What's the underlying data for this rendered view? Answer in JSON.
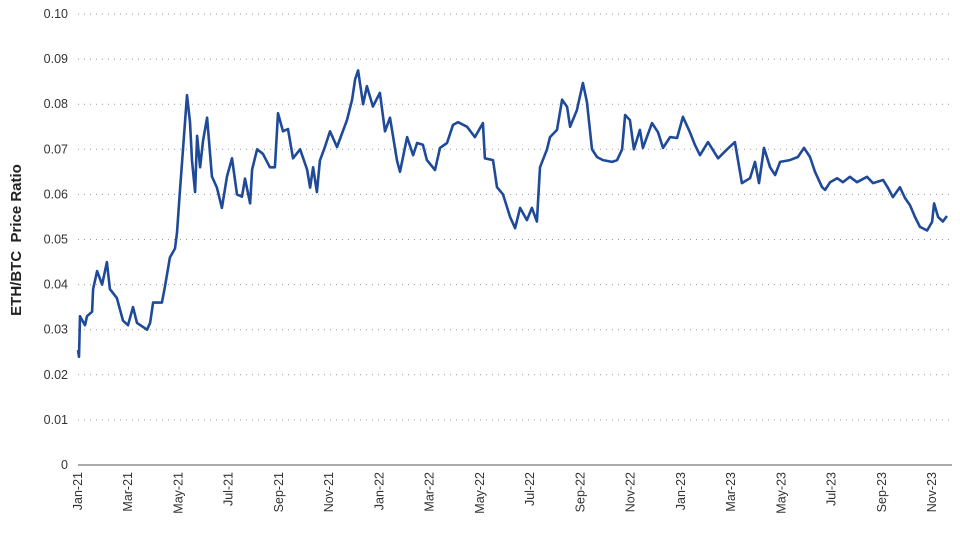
{
  "chart_data": {
    "type": "line",
    "title": "",
    "xlabel": "",
    "ylabel": "ETH/BTC  Price Ratio",
    "ylim": [
      0,
      0.1
    ],
    "y_ticks": [
      "0",
      "0.01",
      "0.02",
      "0.03",
      "0.04",
      "0.05",
      "0.06",
      "0.07",
      "0.08",
      "0.09",
      "0.10"
    ],
    "y_tick_values": [
      0,
      0.01,
      0.02,
      0.03,
      0.04,
      0.05,
      0.06,
      0.07,
      0.08,
      0.09,
      0.1
    ],
    "x_unit": "months since Jan-21",
    "x_ticks": [
      "Jan-21",
      "Mar-21",
      "May-21",
      "Jul-21",
      "Sep-21",
      "Nov-21",
      "Jan-22",
      "Mar-22",
      "May-22",
      "Jul-22",
      "Sep-22",
      "Nov-22",
      "Jan-23",
      "Mar-23",
      "May-23",
      "Jul-23",
      "Sep-23",
      "Nov-23"
    ],
    "x_tick_values": [
      0,
      2,
      4,
      6,
      8,
      10,
      12,
      14,
      16,
      18,
      20,
      22,
      24,
      26,
      28,
      30,
      32,
      34
    ],
    "grid": "horizontal dotted",
    "color": "#1f4a99",
    "series": [
      {
        "name": "ETH/BTC",
        "x": [
          0,
          0.04,
          0.08,
          0.28,
          0.36,
          0.56,
          0.6,
          0.76,
          0.96,
          1.15,
          1.27,
          1.55,
          1.79,
          1.99,
          2.19,
          2.35,
          2.75,
          2.87,
          2.99,
          3.34,
          3.46,
          3.66,
          3.86,
          3.94,
          4.06,
          4.18,
          4.34,
          4.46,
          4.54,
          4.66,
          4.74,
          4.86,
          4.98,
          5.14,
          5.33,
          5.53,
          5.73,
          5.93,
          6.13,
          6.33,
          6.53,
          6.65,
          6.85,
          6.93,
          7.13,
          7.36,
          7.64,
          7.84,
          7.96,
          8.16,
          8.36,
          8.56,
          8.84,
          9.12,
          9.24,
          9.36,
          9.51,
          9.63,
          9.83,
          10.03,
          10.31,
          10.51,
          10.71,
          10.91,
          11.03,
          11.15,
          11.35,
          11.5,
          11.74,
          12.02,
          12.22,
          12.42,
          12.7,
          12.82,
          13.1,
          13.34,
          13.5,
          13.73,
          13.89,
          14.21,
          14.41,
          14.69,
          14.93,
          15.13,
          15.49,
          15.8,
          16.12,
          16.2,
          16.52,
          16.68,
          16.92,
          17.2,
          17.4,
          17.6,
          17.87,
          18.07,
          18.27,
          18.39,
          18.67,
          18.79,
          19.07,
          19.27,
          19.47,
          19.59,
          19.86,
          20.1,
          20.26,
          20.46,
          20.66,
          20.9,
          21.26,
          21.46,
          21.66,
          21.78,
          21.97,
          22.13,
          22.37,
          22.49,
          22.85,
          23.09,
          23.29,
          23.57,
          23.85,
          24.08,
          24.36,
          24.56,
          24.76,
          25.08,
          25.48,
          25.84,
          26.15,
          26.43,
          26.75,
          26.95,
          27.11,
          27.31,
          27.55,
          27.75,
          27.95,
          28.34,
          28.66,
          28.9,
          29.14,
          29.34,
          29.62,
          29.74,
          29.94,
          30.22,
          30.45,
          30.73,
          31.01,
          31.41,
          31.65,
          32.05,
          32.25,
          32.44,
          32.72,
          32.92,
          33.12,
          33.32,
          33.52,
          33.8,
          34.0,
          34.08,
          34.24,
          34.43,
          34.59
        ],
        "values": [
          0.0255,
          0.024,
          0.033,
          0.031,
          0.033,
          0.034,
          0.039,
          0.043,
          0.04,
          0.045,
          0.039,
          0.037,
          0.032,
          0.031,
          0.035,
          0.0315,
          0.03,
          0.0315,
          0.036,
          0.036,
          0.0395,
          0.046,
          0.048,
          0.0515,
          0.061,
          0.07,
          0.082,
          0.076,
          0.0675,
          0.0605,
          0.073,
          0.066,
          0.072,
          0.077,
          0.064,
          0.0615,
          0.057,
          0.064,
          0.068,
          0.06,
          0.0595,
          0.0635,
          0.058,
          0.0655,
          0.07,
          0.069,
          0.066,
          0.066,
          0.078,
          0.074,
          0.0745,
          0.068,
          0.07,
          0.0655,
          0.0615,
          0.066,
          0.0605,
          0.0675,
          0.0705,
          0.074,
          0.0705,
          0.0735,
          0.0765,
          0.081,
          0.0855,
          0.0875,
          0.08,
          0.084,
          0.0795,
          0.0825,
          0.074,
          0.077,
          0.0675,
          0.065,
          0.0727,
          0.0687,
          0.0714,
          0.071,
          0.0676,
          0.0654,
          0.0703,
          0.0714,
          0.0754,
          0.076,
          0.075,
          0.0727,
          0.0758,
          0.068,
          0.0676,
          0.0616,
          0.06,
          0.055,
          0.0525,
          0.057,
          0.0543,
          0.057,
          0.054,
          0.066,
          0.07,
          0.0727,
          0.0743,
          0.081,
          0.0794,
          0.075,
          0.0787,
          0.0847,
          0.0805,
          0.07,
          0.0683,
          0.0676,
          0.0672,
          0.0676,
          0.07,
          0.0776,
          0.0765,
          0.07,
          0.0743,
          0.0703,
          0.0758,
          0.0738,
          0.0703,
          0.0727,
          0.0725,
          0.0772,
          0.0738,
          0.071,
          0.0687,
          0.0716,
          0.068,
          0.07,
          0.0716,
          0.0625,
          0.0636,
          0.0672,
          0.0625,
          0.0703,
          0.066,
          0.0643,
          0.0672,
          0.0676,
          0.0683,
          0.0703,
          0.0683,
          0.065,
          0.0616,
          0.061,
          0.0627,
          0.0636,
          0.0627,
          0.0639,
          0.0627,
          0.0639,
          0.0625,
          0.0632,
          0.0614,
          0.0594,
          0.0616,
          0.0592,
          0.0576,
          0.055,
          0.0528,
          0.052,
          0.0539,
          0.058,
          0.055,
          0.054,
          0.0552
        ]
      }
    ]
  }
}
